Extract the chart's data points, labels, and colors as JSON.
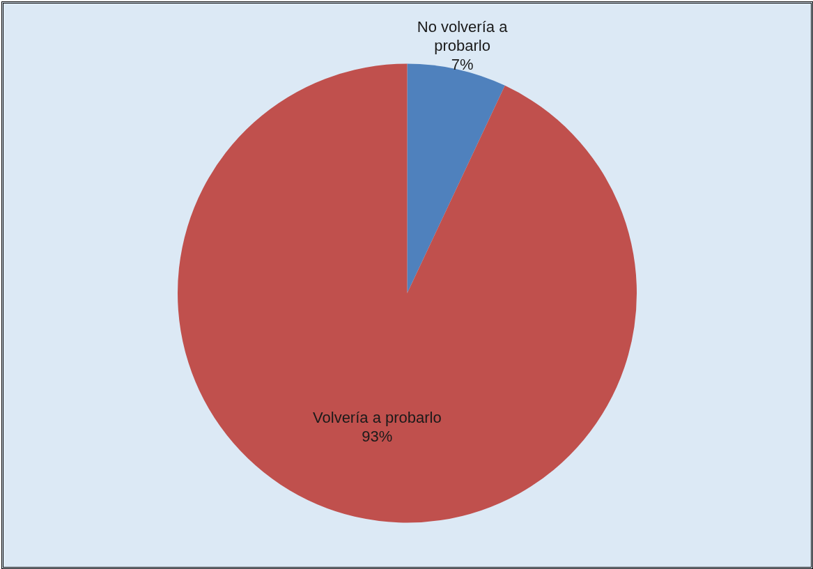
{
  "chart_data": {
    "type": "pie",
    "categories": [
      "No volvería a probarlo",
      "Volvería a probarlo"
    ],
    "values": [
      7,
      93
    ],
    "colors": [
      "#4f81bd",
      "#c0504d"
    ],
    "value_labels": [
      "7%",
      "93%"
    ],
    "legend": false
  }
}
